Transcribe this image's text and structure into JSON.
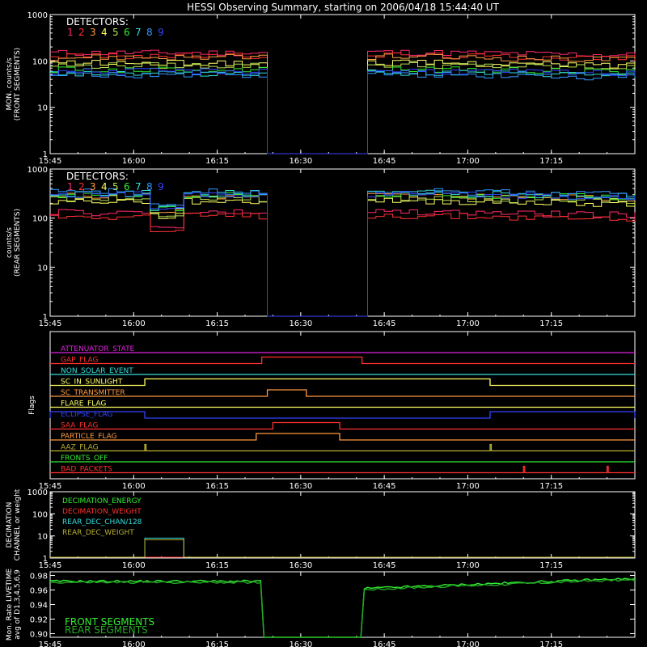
{
  "title": "HESSI Observing Summary, starting on 2006/04/18 15:44:40 UT",
  "colors": {
    "detectors": [
      "#ff2a6d",
      "#ff3030",
      "#ff9a40",
      "#ffff66",
      "#b8e050",
      "#33ee33",
      "#33dddd",
      "#3399ff",
      "#3344ff"
    ],
    "frame": "#ffffff",
    "background": "#000000"
  },
  "x_ticks": [
    "15:45",
    "16:00",
    "16:15",
    "16:30",
    "16:45",
    "17:00",
    "17:15"
  ],
  "chart_data": [
    {
      "type": "line",
      "panel": "front",
      "ylabel": [
        "MON. counts/s",
        "(FRONT SEGMENTS)"
      ],
      "yscale": "log",
      "ylim": [
        1,
        1000
      ],
      "y_ticks": [
        "1",
        "10",
        "100",
        "1000"
      ],
      "legend_title": "DETECTORS:",
      "legend_labels": [
        "1",
        "2",
        "3",
        "4",
        "5",
        "6",
        "7",
        "8",
        "9"
      ],
      "gaps": [
        [
          "16:23",
          "16:41"
        ]
      ],
      "series_levels": [
        150,
        130,
        120,
        90,
        80,
        65,
        55,
        50,
        60
      ]
    },
    {
      "type": "line",
      "panel": "rear",
      "ylabel": [
        "counts/s",
        "(REAR SEGMENTS)"
      ],
      "yscale": "log",
      "ylim": [
        1,
        1000
      ],
      "y_ticks": [
        "1",
        "10",
        "100",
        "1000"
      ],
      "legend_title": "DETECTORS:",
      "legend_labels": [
        "1",
        "2",
        "3",
        "4",
        "5",
        "6",
        "7",
        "8",
        "9"
      ],
      "gaps": [
        [
          "16:23",
          "16:41"
        ]
      ],
      "series_levels": [
        130,
        110,
        280,
        220,
        250,
        300,
        320,
        350,
        300
      ]
    },
    {
      "type": "line",
      "panel": "flags",
      "ylabel": [
        "Flags"
      ],
      "flags": [
        {
          "name": "ATTENUATOR_STATE",
          "color": "#dd22dd",
          "on": []
        },
        {
          "name": "GAP_FLAG",
          "color": "#ff3030",
          "on": [
            [
              "16:23",
              "16:41"
            ]
          ]
        },
        {
          "name": "NON_SOLAR_EVENT",
          "color": "#33dddd",
          "on": []
        },
        {
          "name": "SC_IN_SUNLIGHT",
          "color": "#ffff66",
          "on": [
            [
              "16:02",
              "17:04"
            ]
          ]
        },
        {
          "name": "SC_TRANSMITTER",
          "color": "#ff9a40",
          "on": [
            [
              "16:24",
              "16:31"
            ]
          ]
        },
        {
          "name": "FLARE_FLAG",
          "color": "#ffff66",
          "on": []
        },
        {
          "name": "ECLIPSE_FLAG",
          "color": "#3344ff",
          "on": [
            [
              "15:45",
              "16:02"
            ],
            [
              "17:04",
              "17:30"
            ]
          ]
        },
        {
          "name": "SAA_FLAG",
          "color": "#ff3030",
          "on": [
            [
              "16:25",
              "16:37"
            ]
          ]
        },
        {
          "name": "PARTICLE_FLAG",
          "color": "#ff9a40",
          "on": [
            [
              "16:22",
              "16:37"
            ]
          ]
        },
        {
          "name": "AAZ_FLAG",
          "color": "#b8b030",
          "on": [
            [
              "16:02",
              "16:02"
            ],
            [
              "17:04",
              "17:04"
            ]
          ]
        },
        {
          "name": "FRONTS_OFF",
          "color": "#33ee33",
          "on": []
        },
        {
          "name": "BAD_PACKETS",
          "color": "#ff3030",
          "on": [
            [
              "17:10",
              "17:10"
            ],
            [
              "17:25",
              "17:25"
            ]
          ]
        }
      ]
    },
    {
      "type": "line",
      "panel": "decimation",
      "ylabel": [
        "DECIMATION",
        "CHANNEL or weight"
      ],
      "yscale": "log",
      "ylim": [
        1,
        1000
      ],
      "y_ticks": [
        "1",
        "10",
        "100",
        "1000"
      ],
      "series": [
        {
          "name": "DECIMATION_ENERGY",
          "color": "#33ee33"
        },
        {
          "name": "DECIMATION_WEIGHT",
          "color": "#ff3030"
        },
        {
          "name": "REAR_DEC_CHAN/128",
          "color": "#33dddd"
        },
        {
          "name": "REAR_DEC_WEIGHT",
          "color": "#b8b030"
        }
      ],
      "step": {
        "from": "16:02",
        "to": "16:09",
        "value": 8
      }
    },
    {
      "type": "line",
      "panel": "livetime",
      "ylabel": [
        "Mon. Rate LIVETIME",
        "avg of D1,3,4,5,6,9"
      ],
      "ylim": [
        0.9,
        0.98
      ],
      "y_ticks": [
        "0.90",
        "0.92",
        "0.94",
        "0.96",
        "0.98"
      ],
      "series": [
        {
          "name": "FRONT SEGMENTS",
          "color": "#33ee33"
        },
        {
          "name": "REAR SEGMENTS",
          "color": "#22aa22"
        }
      ],
      "gaps": [
        [
          "16:23",
          "16:41"
        ]
      ],
      "level_before": 0.972,
      "level_after_start": 0.962,
      "level_after_end": 0.975
    }
  ]
}
